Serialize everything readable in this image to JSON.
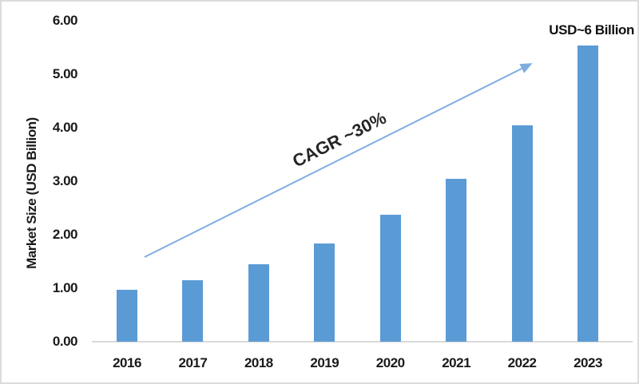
{
  "chart_data": {
    "type": "bar",
    "title": "",
    "categories": [
      "2016",
      "2017",
      "2018",
      "2019",
      "2020",
      "2021",
      "2022",
      "2023"
    ],
    "values": [
      0.97,
      1.15,
      1.45,
      1.83,
      2.37,
      3.05,
      4.05,
      5.53
    ],
    "xlabel": "",
    "ylabel": "Market Size (USD Billion)",
    "ylim": [
      0,
      6
    ],
    "ytick_labels": [
      "0.00",
      "1.00",
      "2.00",
      "3.00",
      "4.00",
      "5.00",
      "6.00"
    ],
    "grid": false,
    "legend": null,
    "bar_color": "#5B9BD5",
    "annotations": {
      "cagr_label": "CAGR ~30%",
      "target_label": "USD~6 Billion",
      "arrow_color": "#7FAEDE"
    }
  }
}
